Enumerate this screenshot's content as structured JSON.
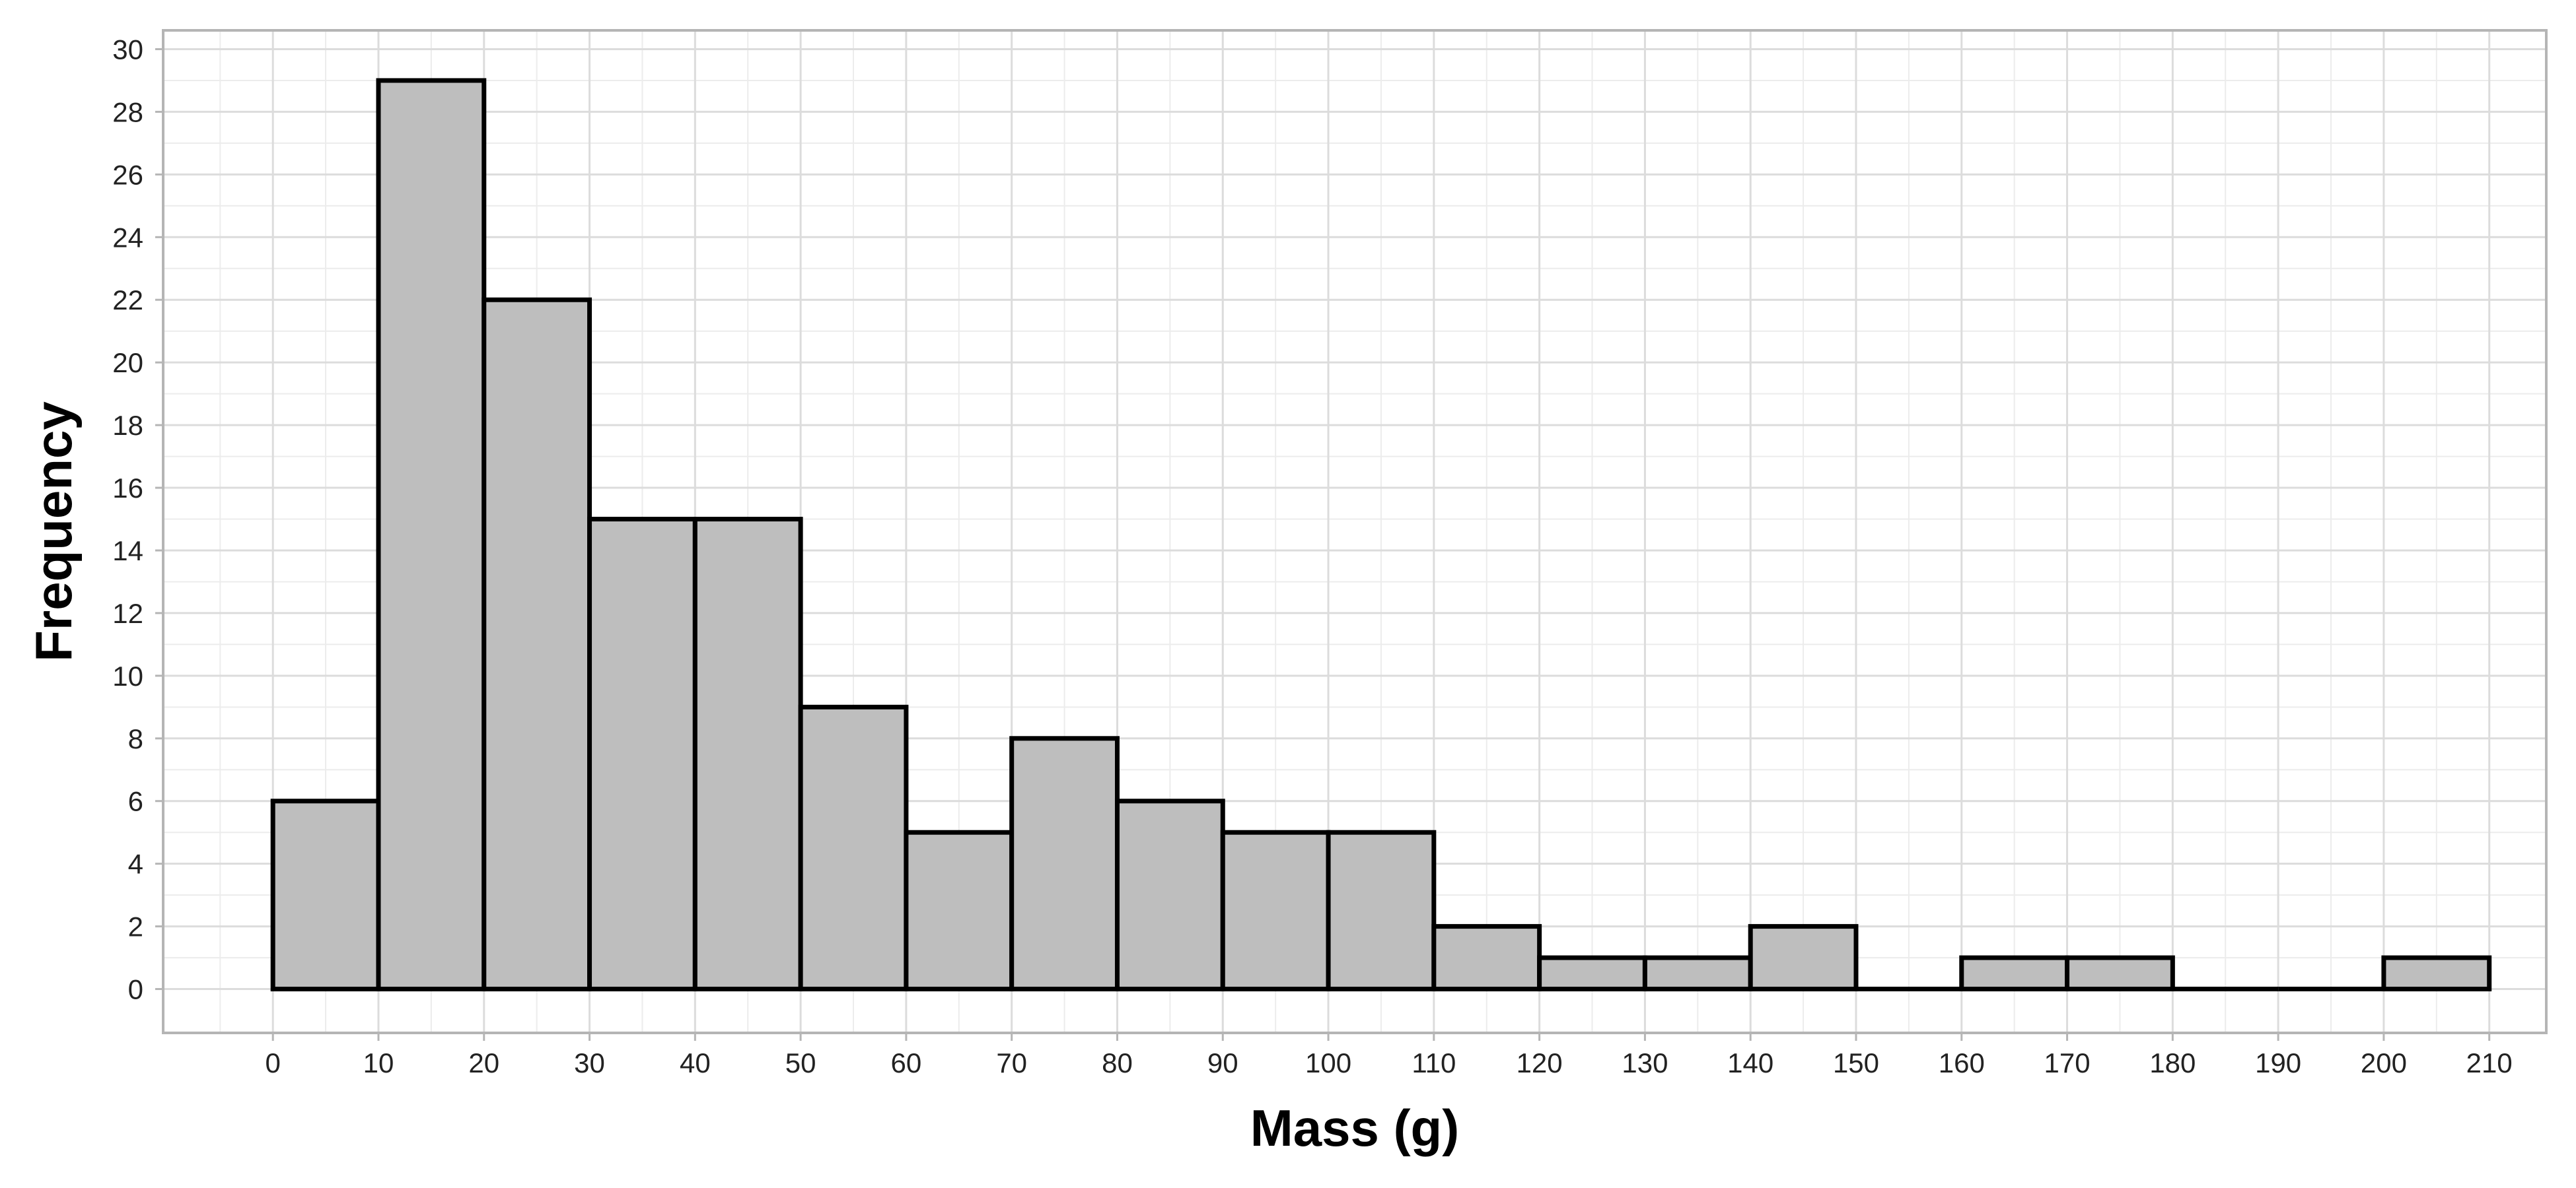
{
  "chart_data": {
    "type": "bar",
    "subtype": "histogram",
    "title": "",
    "xlabel": "Mass (g)",
    "ylabel": "Frequency",
    "bin_width": 10,
    "bins": [
      {
        "start": 0,
        "end": 10,
        "count": 6
      },
      {
        "start": 10,
        "end": 20,
        "count": 29
      },
      {
        "start": 20,
        "end": 30,
        "count": 22
      },
      {
        "start": 30,
        "end": 40,
        "count": 15
      },
      {
        "start": 40,
        "end": 50,
        "count": 15
      },
      {
        "start": 50,
        "end": 60,
        "count": 9
      },
      {
        "start": 60,
        "end": 70,
        "count": 5
      },
      {
        "start": 70,
        "end": 80,
        "count": 8
      },
      {
        "start": 80,
        "end": 90,
        "count": 6
      },
      {
        "start": 90,
        "end": 100,
        "count": 5
      },
      {
        "start": 100,
        "end": 110,
        "count": 5
      },
      {
        "start": 110,
        "end": 120,
        "count": 2
      },
      {
        "start": 120,
        "end": 130,
        "count": 1
      },
      {
        "start": 130,
        "end": 140,
        "count": 1
      },
      {
        "start": 140,
        "end": 150,
        "count": 2
      },
      {
        "start": 150,
        "end": 160,
        "count": 0
      },
      {
        "start": 160,
        "end": 170,
        "count": 1
      },
      {
        "start": 170,
        "end": 180,
        "count": 1
      },
      {
        "start": 180,
        "end": 190,
        "count": 0
      },
      {
        "start": 190,
        "end": 200,
        "count": 0
      },
      {
        "start": 200,
        "end": 210,
        "count": 1
      }
    ],
    "x_ticks": [
      0,
      10,
      20,
      30,
      40,
      50,
      60,
      70,
      80,
      90,
      100,
      110,
      120,
      130,
      140,
      150,
      160,
      170,
      180,
      190,
      200,
      210
    ],
    "y_ticks": [
      0,
      2,
      4,
      6,
      8,
      10,
      12,
      14,
      16,
      18,
      20,
      22,
      24,
      26,
      28,
      30
    ],
    "xlim": [
      -10.4,
      215.4
    ],
    "ylim": [
      -1.4,
      30.6
    ],
    "grid": true,
    "legend": "none",
    "colors": {
      "bar_fill": "#bebebe",
      "bar_edge": "#000000",
      "grid_major": "#dcdcdc",
      "grid_minor": "#ececec",
      "panel_border": "#b5b5b5"
    }
  }
}
